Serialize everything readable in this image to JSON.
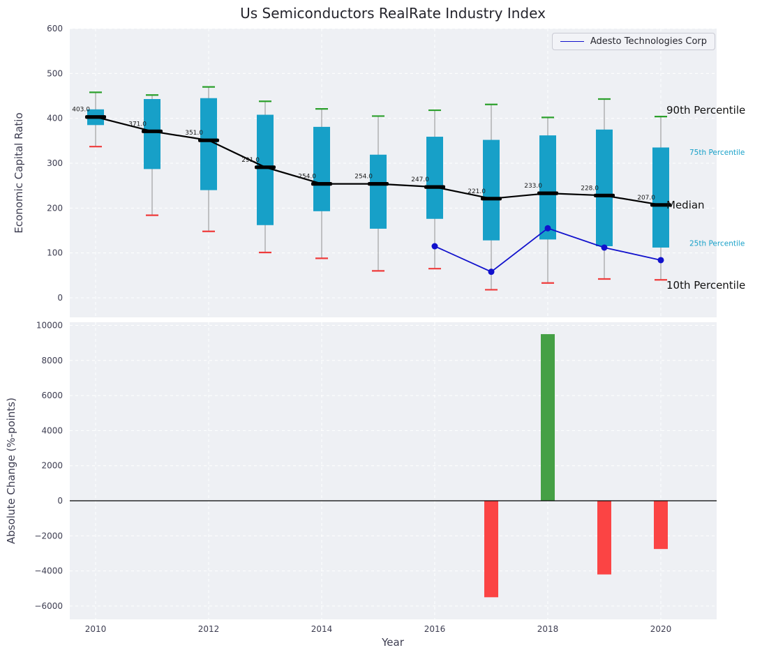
{
  "title": "Us Semiconductors RealRate Industry Index",
  "legend": {
    "series_label": "Adesto Technologies Corp"
  },
  "colors": {
    "panel_bg": "#eef0f4",
    "grid": "#ffffff",
    "tick": "#3c3c50",
    "box": "#17a0c8",
    "median": "#000000",
    "p90_cap": "#2ca02c",
    "p10_cap": "#ef3b3b",
    "whisker": "#a0a0a0",
    "company_line": "#1111cc",
    "bar_positive": "#45a045",
    "bar_negative": "#fb4444",
    "annotation_black": "#111111",
    "annotation_cyan": "#17a0c8"
  },
  "chart_data": [
    {
      "type": "boxplot+line",
      "panel": "top",
      "title": "Us Semiconductors RealRate Industry Index",
      "ylabel": "Economic Capital Ratio",
      "ylim": [
        0,
        600
      ],
      "yticks": [
        0,
        100,
        200,
        300,
        400,
        500,
        600
      ],
      "categories": [
        2010,
        2011,
        2012,
        2013,
        2014,
        2015,
        2016,
        2017,
        2018,
        2019,
        2020
      ],
      "boxplots": [
        {
          "year": 2010,
          "p10": 337,
          "p25": 385,
          "median": 403,
          "p75": 420,
          "p90": 458,
          "median_label": "403.0"
        },
        {
          "year": 2011,
          "p10": 184,
          "p25": 287,
          "median": 371,
          "p75": 443,
          "p90": 452,
          "median_label": "371.0"
        },
        {
          "year": 2012,
          "p10": 148,
          "p25": 240,
          "median": 351,
          "p75": 445,
          "p90": 470,
          "median_label": "351.0"
        },
        {
          "year": 2013,
          "p10": 101,
          "p25": 162,
          "median": 291,
          "p75": 408,
          "p90": 438,
          "median_label": "291.0"
        },
        {
          "year": 2014,
          "p10": 88,
          "p25": 193,
          "median": 254,
          "p75": 381,
          "p90": 421,
          "median_label": "254.0"
        },
        {
          "year": 2015,
          "p10": 60,
          "p25": 154,
          "median": 254,
          "p75": 319,
          "p90": 405,
          "median_label": "254.0"
        },
        {
          "year": 2016,
          "p10": 65,
          "p25": 176,
          "median": 247,
          "p75": 359,
          "p90": 418,
          "median_label": "247.0"
        },
        {
          "year": 2017,
          "p10": 18,
          "p25": 128,
          "median": 221,
          "p75": 352,
          "p90": 431,
          "median_label": "221.0"
        },
        {
          "year": 2018,
          "p10": 33,
          "p25": 130,
          "median": 233,
          "p75": 362,
          "p90": 402,
          "median_label": "233.0"
        },
        {
          "year": 2019,
          "p10": 42,
          "p25": 115,
          "median": 228,
          "p75": 375,
          "p90": 443,
          "median_label": "228.0"
        },
        {
          "year": 2020,
          "p10": 40,
          "p25": 112,
          "median": 207,
          "p75": 335,
          "p90": 404,
          "median_label": "207.0"
        }
      ],
      "series": [
        {
          "name": "Adesto Technologies Corp",
          "x": [
            2016,
            2017,
            2018,
            2019,
            2020
          ],
          "y": [
            115,
            58,
            155,
            112,
            84
          ]
        }
      ],
      "annotations": [
        {
          "text": "90th Percentile",
          "y": 418,
          "style": "black"
        },
        {
          "text": "75th Percentile",
          "y": 325,
          "style": "cyan"
        },
        {
          "text": "Median",
          "y": 207,
          "style": "black"
        },
        {
          "text": "25th Percentile",
          "y": 122,
          "style": "cyan"
        },
        {
          "text": "10th Percentile",
          "y": 28,
          "style": "black"
        }
      ],
      "legend_position": "upper right"
    },
    {
      "type": "bar",
      "panel": "bottom",
      "ylabel": "Absolute Change (%-points)",
      "xlabel": "Year",
      "ylim": [
        -6800,
        10200
      ],
      "yticks": [
        -6000,
        -4000,
        -2000,
        0,
        2000,
        4000,
        6000,
        8000,
        10000
      ],
      "xticks": [
        2010,
        2012,
        2014,
        2016,
        2018,
        2020
      ],
      "bars": [
        {
          "year": 2017,
          "value": -5500
        },
        {
          "year": 2018,
          "value": 9500
        },
        {
          "year": 2019,
          "value": -4200
        },
        {
          "year": 2020,
          "value": -2750
        }
      ]
    }
  ]
}
